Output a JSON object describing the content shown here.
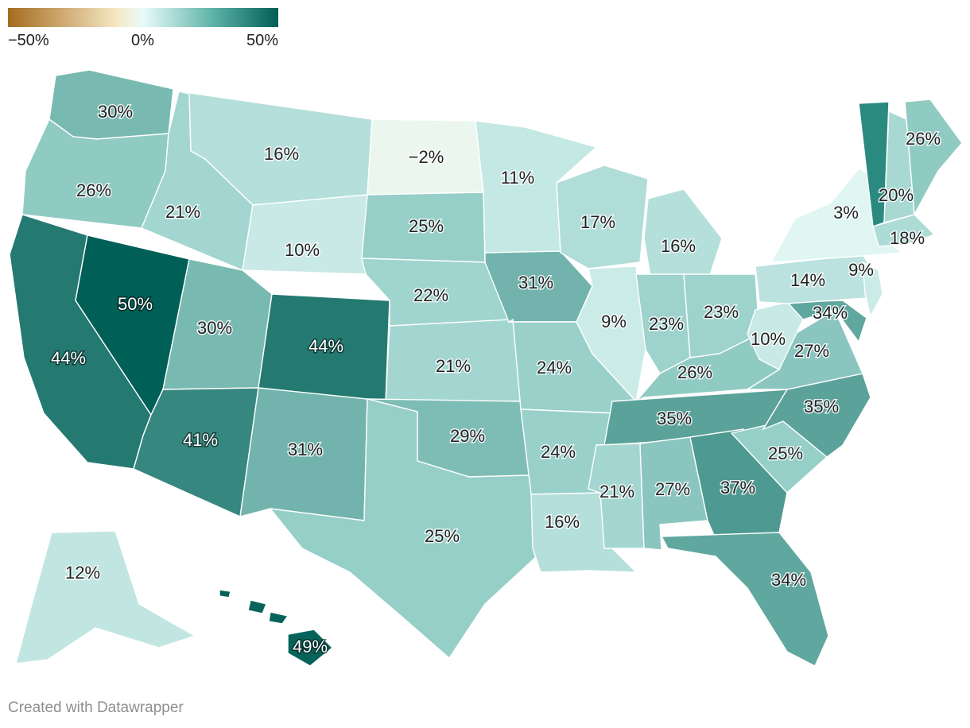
{
  "legend": {
    "min_label": "−50%",
    "mid_label": "0%",
    "max_label": "50%",
    "colors": [
      "#a56b1e",
      "#f5e7c3",
      "#e9fbf9",
      "#62b5ab",
      "#005f56"
    ]
  },
  "credit": "Created with Datawrapper",
  "states": [
    {
      "id": "WA",
      "value": 30,
      "label": "30%"
    },
    {
      "id": "OR",
      "value": 26,
      "label": "26%"
    },
    {
      "id": "CA",
      "value": 44,
      "label": "44%"
    },
    {
      "id": "NV",
      "value": 50,
      "label": "50%"
    },
    {
      "id": "ID",
      "value": 21,
      "label": "21%"
    },
    {
      "id": "MT",
      "value": 16,
      "label": "16%"
    },
    {
      "id": "WY",
      "value": 10,
      "label": "10%"
    },
    {
      "id": "UT",
      "value": 30,
      "label": "30%"
    },
    {
      "id": "AZ",
      "value": 41,
      "label": "41%"
    },
    {
      "id": "CO",
      "value": 44,
      "label": "44%"
    },
    {
      "id": "NM",
      "value": 31,
      "label": "31%"
    },
    {
      "id": "ND",
      "value": -2,
      "label": "−2%"
    },
    {
      "id": "SD",
      "value": 25,
      "label": "25%"
    },
    {
      "id": "NE",
      "value": 22,
      "label": "22%"
    },
    {
      "id": "KS",
      "value": 21,
      "label": "21%"
    },
    {
      "id": "OK",
      "value": 29,
      "label": "29%"
    },
    {
      "id": "TX",
      "value": 25,
      "label": "25%"
    },
    {
      "id": "MN",
      "value": 11,
      "label": "11%"
    },
    {
      "id": "IA",
      "value": 31,
      "label": "31%"
    },
    {
      "id": "MO",
      "value": 24,
      "label": "24%"
    },
    {
      "id": "AR",
      "value": 24,
      "label": "24%"
    },
    {
      "id": "LA",
      "value": 16,
      "label": "16%"
    },
    {
      "id": "WI",
      "value": 17,
      "label": "17%"
    },
    {
      "id": "IL",
      "value": 9,
      "label": "9%"
    },
    {
      "id": "MI",
      "value": 16,
      "label": "16%"
    },
    {
      "id": "IN",
      "value": 23,
      "label": "23%"
    },
    {
      "id": "OH",
      "value": 23,
      "label": "23%"
    },
    {
      "id": "KY",
      "value": 26,
      "label": "26%"
    },
    {
      "id": "TN",
      "value": 35,
      "label": "35%"
    },
    {
      "id": "MS",
      "value": 21,
      "label": "21%"
    },
    {
      "id": "AL",
      "value": 27,
      "label": "27%"
    },
    {
      "id": "GA",
      "value": 37,
      "label": "37%"
    },
    {
      "id": "FL",
      "value": 34,
      "label": "34%"
    },
    {
      "id": "SC",
      "value": 25,
      "label": "25%"
    },
    {
      "id": "NC",
      "value": 35,
      "label": "35%"
    },
    {
      "id": "VA",
      "value": 27,
      "label": "27%"
    },
    {
      "id": "WV",
      "value": 10,
      "label": "10%"
    },
    {
      "id": "MD",
      "value": 34,
      "label": "34%"
    },
    {
      "id": "PA",
      "value": 14,
      "label": "14%"
    },
    {
      "id": "NJ",
      "value": 9,
      "label": "9%"
    },
    {
      "id": "NY",
      "value": 3,
      "label": "3%"
    },
    {
      "id": "VT",
      "value": "",
      "label": ""
    },
    {
      "id": "NH",
      "value": 20,
      "label": "20%"
    },
    {
      "id": "ME",
      "value": 26,
      "label": "26%"
    },
    {
      "id": "MA",
      "value": 18,
      "label": "18%"
    },
    {
      "id": "AK",
      "value": 12,
      "label": "12%"
    },
    {
      "id": "HI",
      "value": 49,
      "label": "49%"
    }
  ]
}
